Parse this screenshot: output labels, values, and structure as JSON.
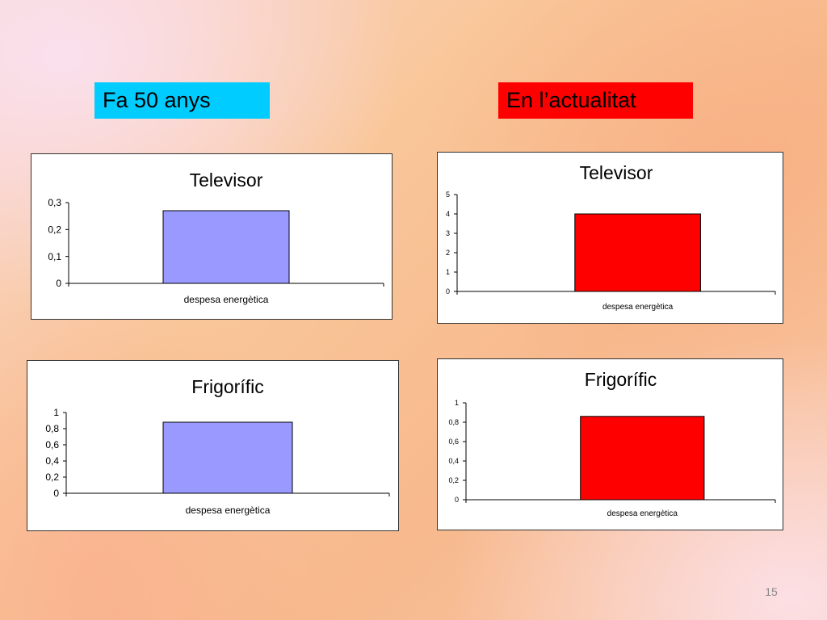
{
  "labels": {
    "left": "Fa 50 anys",
    "right": "En l’actualitat"
  },
  "colors": {
    "left_label_bg": "#00ccff",
    "right_label_bg": "#ff0000",
    "bar_past": "#9999ff",
    "bar_now": "#ff0000"
  },
  "page_number": "15",
  "chart_data": [
    {
      "type": "bar",
      "title": "Televisor",
      "categories": [
        "despesa energètica"
      ],
      "values": [
        0.27
      ],
      "ylim": [
        0,
        0.3
      ],
      "yticks": [
        "0",
        "0,1",
        "0,2",
        "0,3"
      ],
      "grid": false,
      "legend": "none",
      "color": "#9999ff"
    },
    {
      "type": "bar",
      "title": "Televisor",
      "categories": [
        "despesa energètica"
      ],
      "values": [
        4
      ],
      "ylim": [
        0,
        5
      ],
      "yticks": [
        "0",
        "1",
        "2",
        "3",
        "4",
        "5"
      ],
      "grid": false,
      "legend": "none",
      "color": "#ff0000"
    },
    {
      "type": "bar",
      "title": "Frigorífic",
      "categories": [
        "despesa energètica"
      ],
      "values": [
        0.88
      ],
      "ylim": [
        0,
        1
      ],
      "yticks": [
        "0",
        "0,2",
        "0,4",
        "0,6",
        "0,8",
        "1"
      ],
      "grid": false,
      "legend": "none",
      "color": "#9999ff"
    },
    {
      "type": "bar",
      "title": "Frigorífic",
      "categories": [
        "despesa energètica"
      ],
      "values": [
        0.86
      ],
      "ylim": [
        0,
        1
      ],
      "yticks": [
        "0",
        "0,2",
        "0,4",
        "0,6",
        "0,8",
        "1"
      ],
      "grid": false,
      "legend": "none",
      "color": "#ff0000"
    }
  ]
}
